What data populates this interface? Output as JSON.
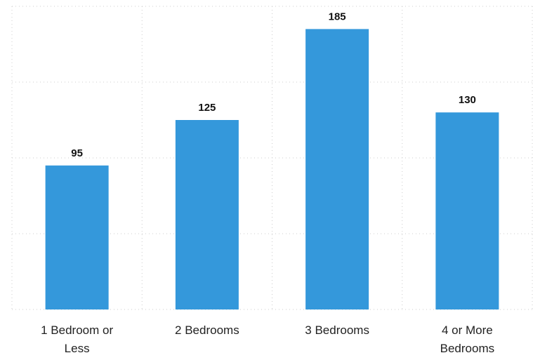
{
  "chart_data": {
    "type": "bar",
    "categories": [
      "1 Bedroom or Less",
      "2 Bedrooms",
      "3 Bedrooms",
      "4 or More Bedrooms"
    ],
    "values": [
      95,
      125,
      185,
      130
    ],
    "color": "#3498db",
    "ylim": [
      0,
      200
    ],
    "yticks": [
      0,
      50,
      100,
      150,
      200
    ],
    "grid": true
  }
}
